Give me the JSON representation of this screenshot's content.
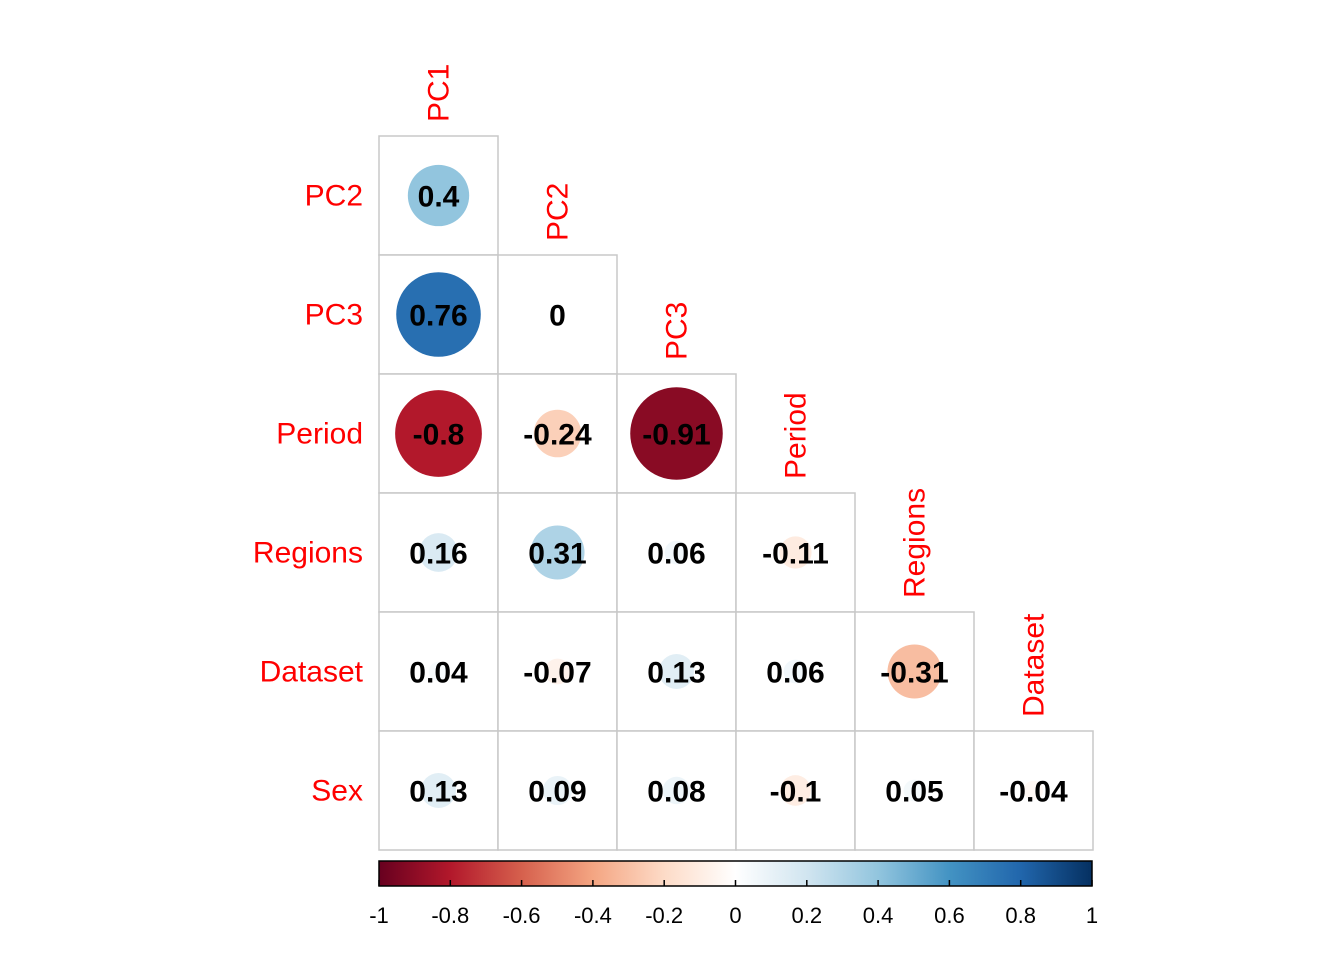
{
  "chart_data": {
    "type": "heatmap",
    "style": "corrplot-lower-circles",
    "variables": [
      "PC1",
      "PC2",
      "PC3",
      "Period",
      "Regions",
      "Dataset",
      "Sex"
    ],
    "row_labels": [
      "PC2",
      "PC3",
      "Period",
      "Regions",
      "Dataset",
      "Sex"
    ],
    "column_labels": [
      "PC1",
      "PC2",
      "PC3",
      "Period",
      "Regions",
      "Dataset"
    ],
    "matrix": [
      [
        0.4
      ],
      [
        0.76,
        0
      ],
      [
        -0.8,
        -0.24,
        -0.91
      ],
      [
        0.16,
        0.31,
        0.06,
        -0.11
      ],
      [
        0.04,
        -0.07,
        0.13,
        0.06,
        -0.31
      ],
      [
        0.13,
        0.09,
        0.08,
        -0.1,
        0.05,
        -0.04
      ]
    ],
    "color_scale": {
      "range": [
        -1,
        1
      ],
      "ticks": [
        "-1",
        "-0.8",
        "-0.6",
        "-0.4",
        "-0.2",
        "0",
        "0.2",
        "0.4",
        "0.6",
        "0.8",
        "1"
      ],
      "stops": [
        "#67001F",
        "#B2182B",
        "#D6604D",
        "#F4A582",
        "#FDDBC7",
        "#FFFFFF",
        "#D1E5F0",
        "#92C5DE",
        "#4393C3",
        "#2166AC",
        "#053061"
      ]
    },
    "label_color": "#ff0000",
    "grid_color": "#c8c8c8"
  }
}
